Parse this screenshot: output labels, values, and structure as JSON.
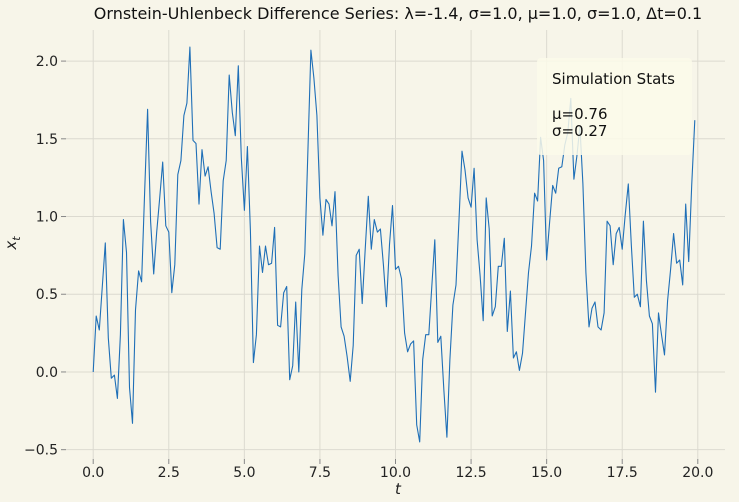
{
  "chart_data": {
    "type": "line",
    "title": "Ornstein-Uhlenbeck Difference Series: λ=-1.4, σ=1.0, μ=1.0, σ=1.0, Δt=0.1",
    "xlabel": "t",
    "ylabel_main": "x",
    "ylabel_sub": "t",
    "xlim": [
      -0.9,
      20.9
    ],
    "ylim": [
      -0.56,
      2.2
    ],
    "x_ticks": [
      0.0,
      2.5,
      5.0,
      7.5,
      10.0,
      12.5,
      15.0,
      17.5,
      20.0
    ],
    "x_tick_labels": [
      "0.0",
      "2.5",
      "5.0",
      "7.5",
      "10.0",
      "12.5",
      "15.0",
      "17.5",
      "20.0"
    ],
    "y_ticks": [
      -0.5,
      0.0,
      0.5,
      1.0,
      1.5,
      2.0
    ],
    "y_tick_labels": [
      "−0.5",
      "0.0",
      "0.5",
      "1.0",
      "1.5",
      "2.0"
    ],
    "grid": true,
    "line_color": "#1f6fb7",
    "background": "#f7f5e9",
    "annotation": {
      "title": "Simulation Stats",
      "lines": [
        "μ=0.76",
        "σ=0.27"
      ],
      "position": "top-right",
      "background": "#fcfaea"
    },
    "series": [
      {
        "x_start": 0.0,
        "x_step": 0.1,
        "values": [
          0.0,
          0.36,
          0.27,
          0.55,
          0.83,
          0.22,
          -0.04,
          -0.02,
          -0.17,
          0.24,
          0.98,
          0.77,
          -0.1,
          -0.33,
          0.4,
          0.65,
          0.58,
          1.15,
          1.69,
          0.97,
          0.63,
          0.9,
          1.12,
          1.35,
          0.94,
          0.9,
          0.51,
          0.69,
          1.27,
          1.36,
          1.65,
          1.73,
          2.09,
          1.49,
          1.47,
          1.08,
          1.43,
          1.26,
          1.32,
          1.16,
          1.02,
          0.8,
          0.79,
          1.23,
          1.36,
          1.91,
          1.67,
          1.52,
          1.97,
          1.38,
          1.04,
          1.45,
          0.91,
          0.06,
          0.24,
          0.81,
          0.64,
          0.81,
          0.69,
          0.7,
          0.93,
          0.3,
          0.29,
          0.51,
          0.55,
          -0.05,
          0.04,
          0.45,
          0.0,
          0.53,
          0.76,
          1.4,
          2.07,
          1.89,
          1.65,
          1.12,
          0.88,
          1.11,
          1.08,
          0.94,
          1.16,
          0.62,
          0.29,
          0.23,
          0.1,
          -0.06,
          0.17,
          0.75,
          0.79,
          0.44,
          0.8,
          1.13,
          0.79,
          0.98,
          0.9,
          0.92,
          0.69,
          0.42,
          0.82,
          1.07,
          0.66,
          0.68,
          0.6,
          0.25,
          0.13,
          0.18,
          0.2,
          -0.34,
          -0.45,
          0.08,
          0.24,
          0.24,
          0.55,
          0.85,
          0.19,
          0.23,
          -0.12,
          -0.42,
          0.08,
          0.43,
          0.56,
          0.98,
          1.42,
          1.3,
          1.12,
          1.06,
          1.31,
          0.85,
          0.62,
          0.33,
          1.12,
          0.92,
          0.36,
          0.42,
          0.68,
          0.68,
          0.86,
          0.26,
          0.52,
          0.09,
          0.13,
          0.01,
          0.12,
          0.38,
          0.64,
          0.81,
          1.15,
          1.1,
          1.51,
          1.36,
          0.72,
          0.97,
          1.2,
          1.15,
          1.31,
          1.32,
          1.46,
          1.54,
          1.76,
          1.24,
          1.39,
          1.58,
          1.21,
          0.64,
          0.29,
          0.41,
          0.45,
          0.29,
          0.27,
          0.38,
          0.97,
          0.94,
          0.69,
          0.89,
          0.93,
          0.79,
          1.01,
          1.21,
          0.82,
          0.48,
          0.5,
          0.42,
          0.97,
          0.59,
          0.36,
          0.31,
          -0.13,
          0.38,
          0.24,
          0.11,
          0.46,
          0.66,
          0.89,
          0.7,
          0.72,
          0.56,
          1.08,
          0.71,
          1.2,
          1.62
        ]
      }
    ]
  }
}
